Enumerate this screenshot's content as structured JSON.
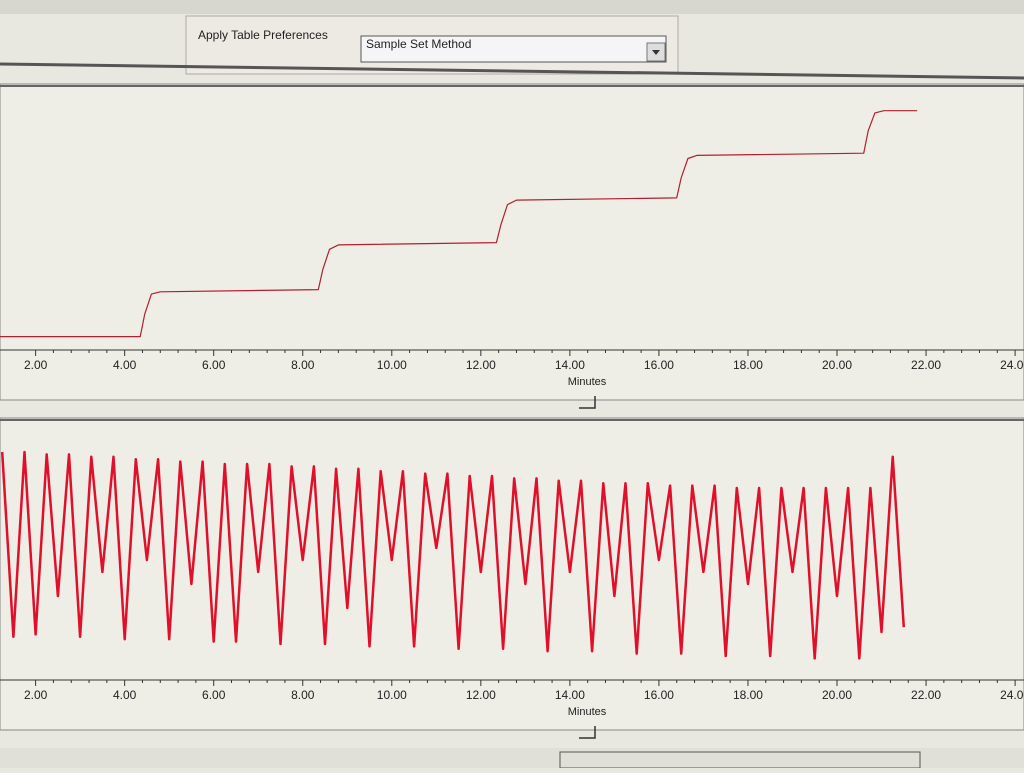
{
  "toolbar": {
    "label": "Apply Table Preferences",
    "select": "Sample Set Method"
  },
  "chart_data": [
    {
      "type": "line",
      "x_label": "Minutes",
      "xlim": [
        1.2,
        24.2
      ],
      "xticks": [
        {
          "value": 2,
          "label": "2.00"
        },
        {
          "value": 4,
          "label": "4.00"
        },
        {
          "value": 6,
          "label": "6.00"
        },
        {
          "value": 8,
          "label": "8.00"
        },
        {
          "value": 10,
          "label": "10.00"
        },
        {
          "value": 12,
          "label": "12.00"
        },
        {
          "value": 14,
          "label": "14.00"
        },
        {
          "value": 16,
          "label": "16.00"
        },
        {
          "value": 18,
          "label": "18.00"
        },
        {
          "value": 20,
          "label": "20.00"
        },
        {
          "value": 22,
          "label": "22.00"
        },
        {
          "value": 24,
          "label": "24.00"
        }
      ],
      "ylim": [
        -0.3,
        5.4
      ],
      "series": [
        {
          "color": "#b02030",
          "x": [
            1.2,
            4.35,
            4.45,
            4.6,
            4.8,
            8.35,
            8.45,
            8.6,
            8.8,
            12.35,
            12.45,
            12.6,
            12.8,
            16.4,
            16.5,
            16.65,
            16.85,
            20.6,
            20.7,
            20.85,
            21.05,
            21.8
          ],
          "values": [
            0,
            0,
            0.5,
            0.95,
            1,
            1.05,
            1.5,
            1.95,
            2.05,
            2.1,
            2.5,
            2.95,
            3.05,
            3.1,
            3.55,
            3.98,
            4.05,
            4.1,
            4.6,
            5.0,
            5.05,
            5.05
          ]
        }
      ]
    },
    {
      "type": "line",
      "x_label": "Minutes",
      "xlim": [
        1.2,
        24.2
      ],
      "xticks": [
        {
          "value": 2,
          "label": "2.00"
        },
        {
          "value": 4,
          "label": "4.00"
        },
        {
          "value": 6,
          "label": "6.00"
        },
        {
          "value": 8,
          "label": "8.00"
        },
        {
          "value": 10,
          "label": "10.00"
        },
        {
          "value": 12,
          "label": "12.00"
        },
        {
          "value": 14,
          "label": "14.00"
        },
        {
          "value": 16,
          "label": "16.00"
        },
        {
          "value": 18,
          "label": "18.00"
        },
        {
          "value": 20,
          "label": "20.00"
        },
        {
          "value": 22,
          "label": "22.00"
        },
        {
          "value": 24,
          "label": "24.00"
        }
      ],
      "ylim": [
        0,
        1
      ],
      "series": [
        {
          "color": "#e0102a",
          "x": [
            1.25,
            1.5,
            1.75,
            2.0,
            2.25,
            2.5,
            2.75,
            3.0,
            3.25,
            3.5,
            3.75,
            4.0,
            4.25,
            4.5,
            4.75,
            5.0,
            5.25,
            5.5,
            5.75,
            6.0,
            6.25,
            6.5,
            6.75,
            7.0,
            7.25,
            7.5,
            7.75,
            8.0,
            8.25,
            8.5,
            8.75,
            9.0,
            9.25,
            9.5,
            9.75,
            10.0,
            10.25,
            10.5,
            10.75,
            11.0,
            11.25,
            11.5,
            11.75,
            12.0,
            12.25,
            12.5,
            12.75,
            13.0,
            13.25,
            13.5,
            13.75,
            14.0,
            14.25,
            14.5,
            14.75,
            15.0,
            15.25,
            15.5,
            15.75,
            16.0,
            16.25,
            16.5,
            16.75,
            17.0,
            17.25,
            17.5,
            17.75,
            18.0,
            18.25,
            18.5,
            18.75,
            19.0,
            19.25,
            19.5,
            19.75,
            20.0,
            20.25,
            20.5,
            20.75,
            21.0,
            21.25,
            21.5
          ],
          "values": [
            0.95,
            0.18,
            0.95,
            0.19,
            0.94,
            0.35,
            0.94,
            0.18,
            0.93,
            0.45,
            0.93,
            0.17,
            0.92,
            0.5,
            0.92,
            0.17,
            0.91,
            0.4,
            0.91,
            0.16,
            0.9,
            0.16,
            0.9,
            0.45,
            0.9,
            0.15,
            0.89,
            0.5,
            0.89,
            0.15,
            0.88,
            0.3,
            0.88,
            0.14,
            0.87,
            0.5,
            0.87,
            0.14,
            0.86,
            0.55,
            0.86,
            0.13,
            0.85,
            0.45,
            0.85,
            0.13,
            0.84,
            0.4,
            0.84,
            0.12,
            0.83,
            0.45,
            0.83,
            0.12,
            0.82,
            0.35,
            0.82,
            0.11,
            0.82,
            0.5,
            0.81,
            0.11,
            0.81,
            0.45,
            0.81,
            0.1,
            0.8,
            0.4,
            0.8,
            0.1,
            0.8,
            0.45,
            0.8,
            0.09,
            0.8,
            0.35,
            0.8,
            0.09,
            0.8,
            0.2,
            0.93,
            0.22
          ]
        }
      ]
    }
  ]
}
